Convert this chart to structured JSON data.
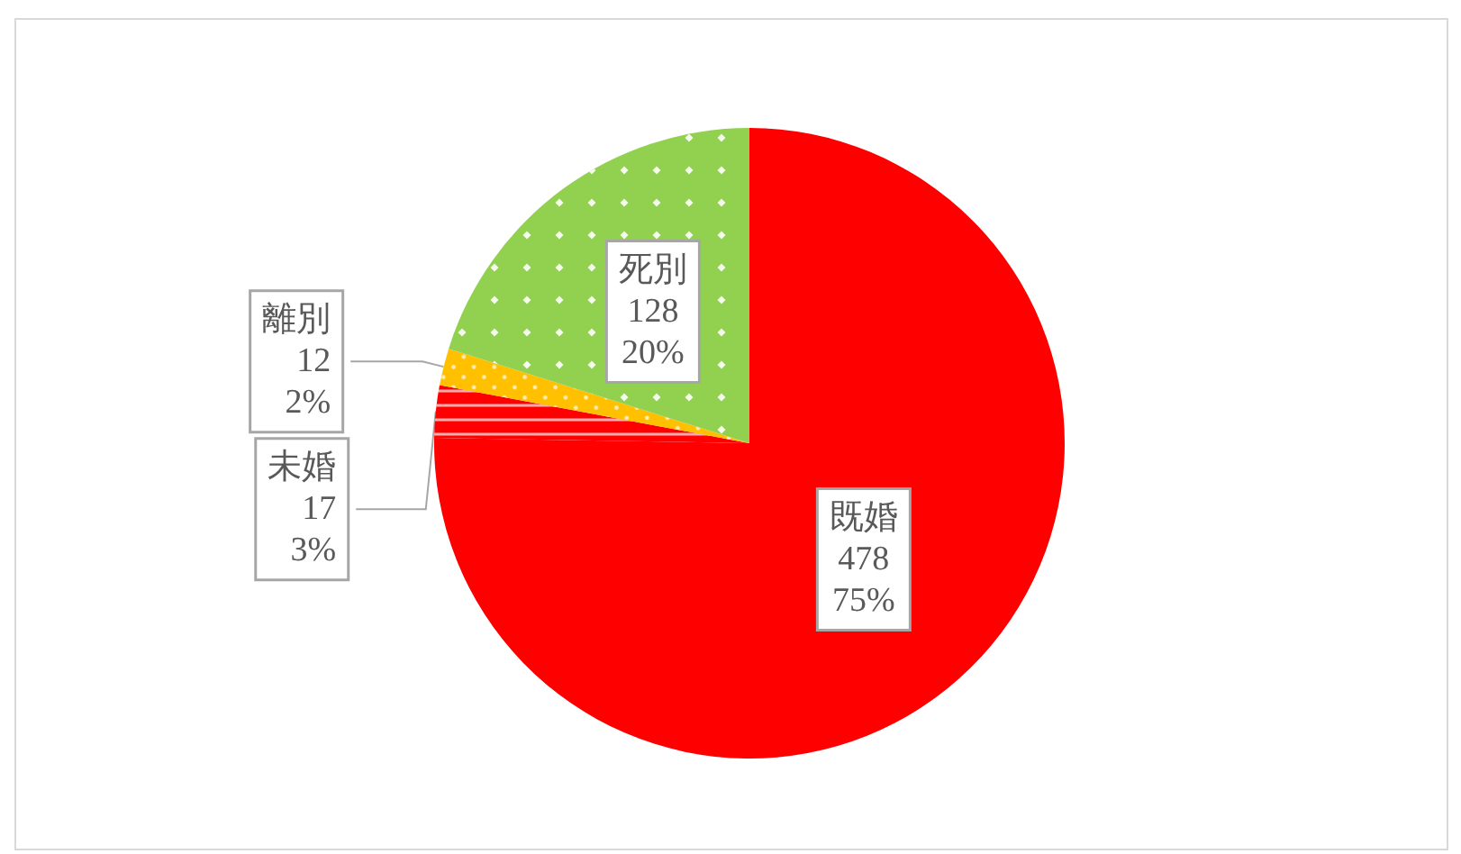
{
  "chart_data": {
    "type": "pie",
    "categories": [
      "既婚",
      "未婚",
      "離別",
      "死別"
    ],
    "values": [
      478,
      17,
      12,
      128
    ],
    "colors": [
      "#ff0000",
      "#ff0000",
      "#ffc000",
      "#92d050"
    ],
    "value_labels": [
      "478\n75%",
      "17\n3%",
      "12\n2%",
      "128\n20%"
    ],
    "legend": false
  }
}
